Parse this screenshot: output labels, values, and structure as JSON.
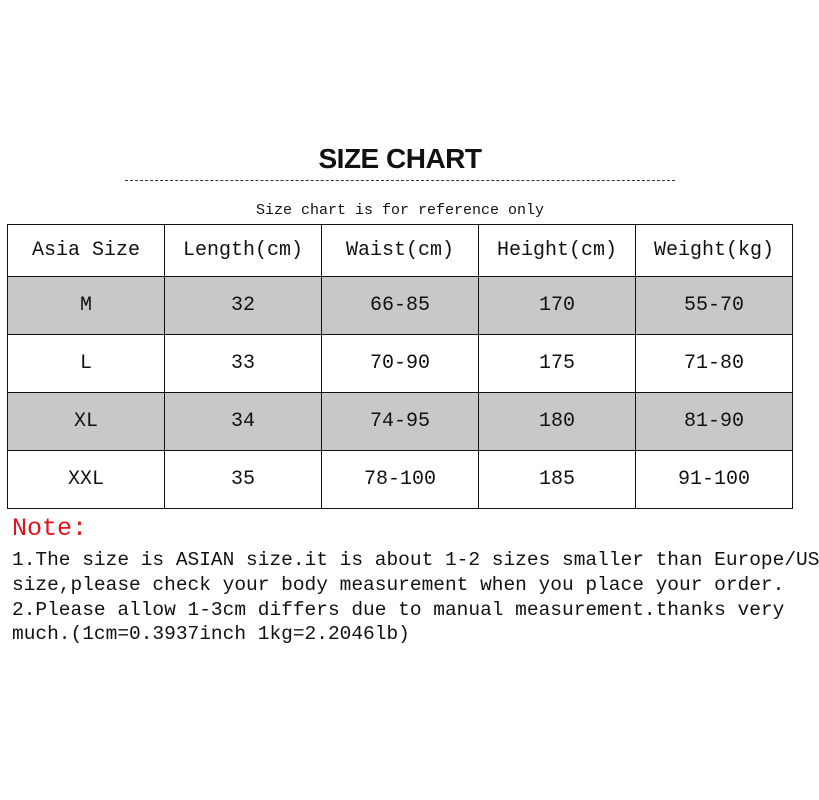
{
  "title": "SIZE CHART",
  "subtitle": "Size chart is for reference only",
  "table": {
    "headers": [
      "Asia Size",
      "Length(cm)",
      "Waist(cm)",
      "Height(cm)",
      "Weight(kg)"
    ],
    "rows": [
      [
        "M",
        "32",
        "66-85",
        "170",
        "55-70"
      ],
      [
        "L",
        "33",
        "70-90",
        "175",
        "71-80"
      ],
      [
        "XL",
        "34",
        "74-95",
        "180",
        "81-90"
      ],
      [
        "XXL",
        "35",
        "78-100",
        "185",
        "91-100"
      ]
    ],
    "shaded_row_color": "#c8c8c8"
  },
  "note": {
    "title": "Note:",
    "title_color": "#e0141e",
    "lines": [
      "1.The size is ASIAN size.it is about 1-2 sizes smaller than Europe/US",
      "size,please check your body measurement when you place your order.",
      "2.Please allow 1-3cm differs due to manual measurement.thanks very",
      "much.(1cm=0.3937inch 1kg=2.2046lb)"
    ]
  }
}
